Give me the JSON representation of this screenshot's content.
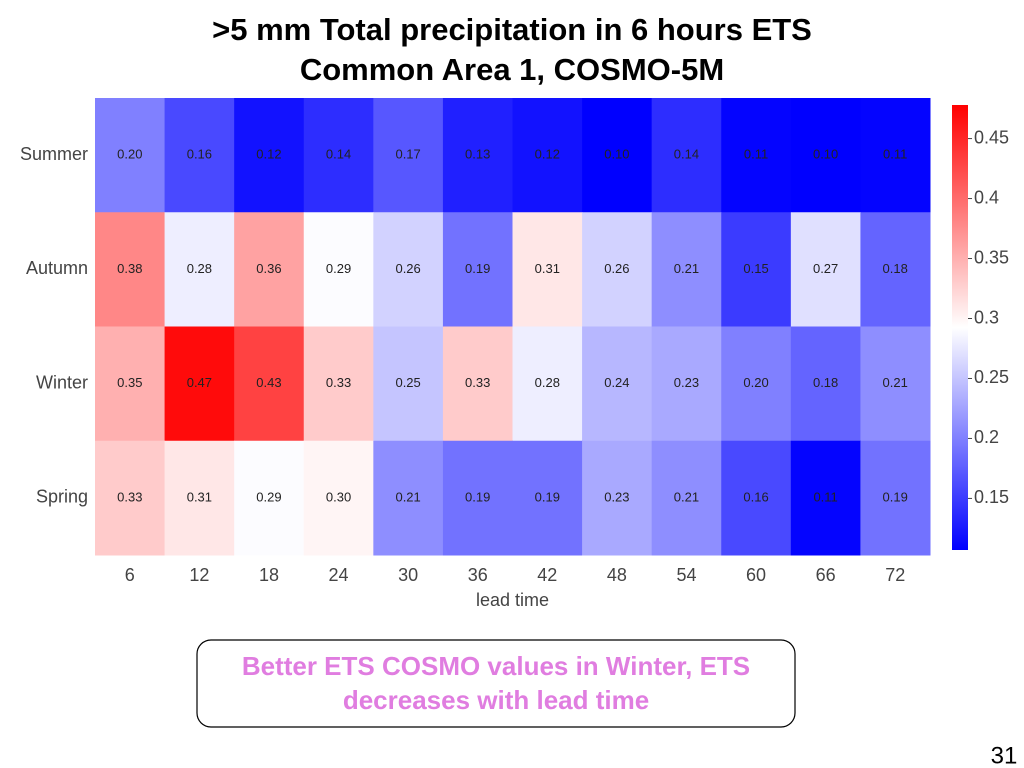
{
  "title_lines": [
    ">5 mm Total precipitation in 6 hours ETS",
    "Common Area 1, COSMO-5M"
  ],
  "chart_data": {
    "type": "heatmap",
    "rows": [
      "Summer",
      "Autumn",
      "Winter",
      "Spring"
    ],
    "categories": [
      "6",
      "12",
      "18",
      "24",
      "30",
      "36",
      "42",
      "48",
      "54",
      "60",
      "66",
      "72"
    ],
    "x_label": "lead time",
    "values": [
      [
        0.2,
        0.16,
        0.12,
        0.14,
        0.17,
        0.13,
        0.12,
        0.1,
        0.14,
        0.11,
        0.1,
        0.11
      ],
      [
        0.38,
        0.28,
        0.36,
        0.29,
        0.26,
        0.19,
        0.31,
        0.26,
        0.21,
        0.15,
        0.27,
        0.18
      ],
      [
        0.35,
        0.47,
        0.43,
        0.33,
        0.25,
        0.33,
        0.28,
        0.24,
        0.23,
        0.2,
        0.18,
        0.21
      ],
      [
        0.33,
        0.31,
        0.29,
        0.3,
        0.21,
        0.19,
        0.19,
        0.23,
        0.21,
        0.16,
        0.11,
        0.19
      ]
    ],
    "value_labels": [
      [
        "0.20",
        "0.16",
        "0.12",
        "0.14",
        "0.17",
        "0.13",
        "0.12",
        "0.10",
        "0.14",
        "0.11",
        "0.10",
        "0.11"
      ],
      [
        "0.38",
        "0.28",
        "0.36",
        "0.29",
        "0.26",
        "0.19",
        "0.31",
        "0.26",
        "0.21",
        "0.15",
        "0.27",
        "0.18"
      ],
      [
        "0.35",
        "0.47",
        "0.43",
        "0.33",
        "0.25",
        "0.33",
        "0.28",
        "0.24",
        "0.23",
        "0.20",
        "0.18",
        "0.21"
      ],
      [
        "0.33",
        "0.31",
        "0.29",
        "0.30",
        "0.21",
        "0.19",
        "0.19",
        "0.23",
        "0.21",
        "0.16",
        "0.11",
        "0.19"
      ]
    ],
    "colormap": "bwr",
    "zlim": [
      0.107,
      0.478
    ],
    "zticks": [
      0.15,
      0.2,
      0.25,
      0.3,
      0.35,
      0.4,
      0.45
    ]
  },
  "note_lines": [
    "Better  ETS COSMO values in Winter, ETS",
    "decreases with lead time"
  ],
  "page_number": "31"
}
